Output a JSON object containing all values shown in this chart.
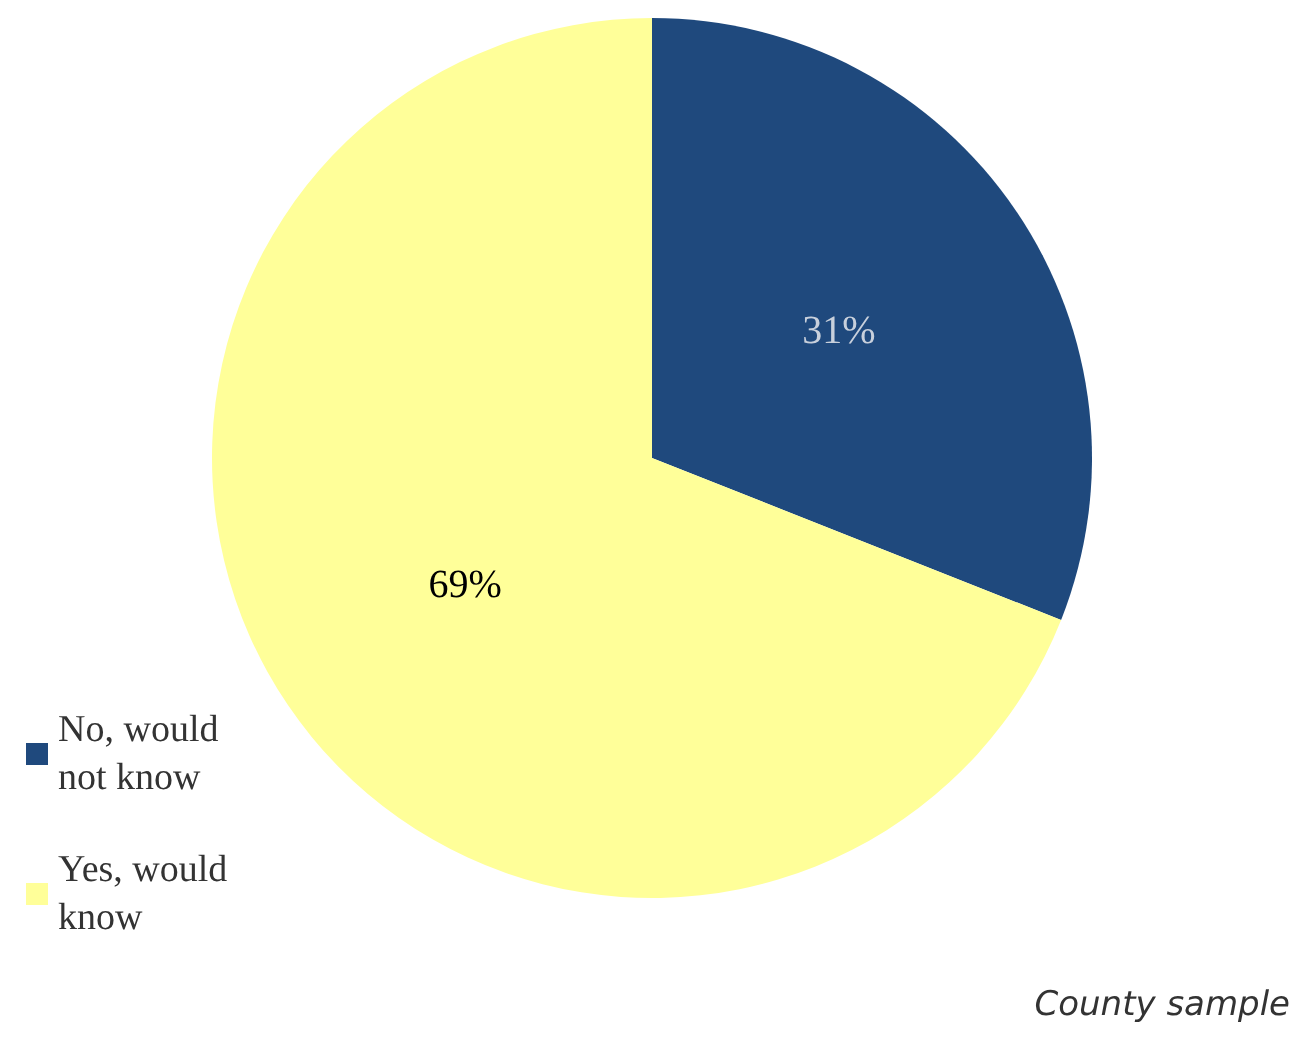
{
  "chart_data": {
    "type": "pie",
    "categories": [
      "No, would not know",
      "Yes, would know"
    ],
    "values": [
      31,
      69
    ],
    "colors": [
      "#1f497d",
      "#ffff99"
    ],
    "value_labels": [
      "31%",
      "69%"
    ],
    "legend": "bottom left",
    "annotations": [
      "County sample"
    ]
  }
}
